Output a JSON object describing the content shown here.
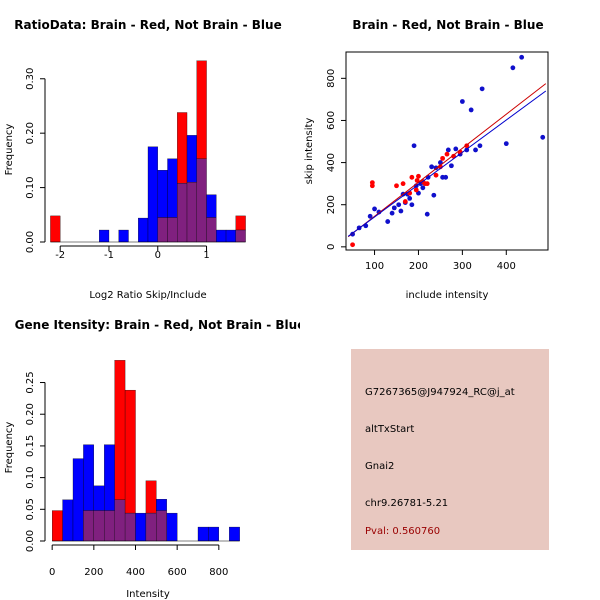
{
  "colors": {
    "red": "#ff0000",
    "blue": "#0000ff",
    "overlap": "#80207f",
    "red_point": "#ff0000",
    "blue_point": "#1010cc",
    "red_line": "#cc0000",
    "blue_line": "#0000cc",
    "info_bg": "#e8c8c0",
    "pval_text": "#990000"
  },
  "chart_data": [
    {
      "id": "ratio",
      "type": "histogram",
      "title": "RatioData: Brain - Red, Not Brain - Blue",
      "xlabel": "Log2 Ratio Skip/Include",
      "ylabel": "Frequency",
      "xlim": [
        -2.25,
        1.85
      ],
      "ylim": [
        0,
        0.34
      ],
      "xticks": [
        -2,
        -1,
        0,
        1
      ],
      "yticks": [
        0,
        0.1,
        0.2,
        0.3
      ],
      "ytick_labels": [
        "0.00",
        "0.10",
        "0.20",
        "0.30"
      ],
      "bin_edges": [
        -2.2,
        -2.0,
        -1.8,
        -1.6,
        -1.4,
        -1.2,
        -1.0,
        -0.8,
        -0.6,
        -0.4,
        -0.2,
        0.0,
        0.2,
        0.4,
        0.6,
        0.8,
        1.0,
        1.2,
        1.4,
        1.6,
        1.8
      ],
      "series": [
        {
          "name": "Brain",
          "color": "red",
          "values": [
            0.048,
            0,
            0,
            0,
            0,
            0,
            0,
            0,
            0,
            0,
            0,
            0.045,
            0.045,
            0.238,
            0.11,
            0.333,
            0.045,
            0,
            0,
            0.048
          ]
        },
        {
          "name": "Not Brain",
          "color": "blue",
          "values": [
            0,
            0,
            0,
            0,
            0,
            0.022,
            0,
            0.022,
            0,
            0.044,
            0.175,
            0.132,
            0.153,
            0.108,
            0.196,
            0.153,
            0.087,
            0.022,
            0.022,
            0.022
          ]
        }
      ]
    },
    {
      "id": "scatter",
      "type": "scatter",
      "title": "Brain - Red, Not Brain - Blue",
      "xlabel": "include intensity",
      "ylabel": "skip intensity",
      "xlim": [
        35,
        495
      ],
      "ylim": [
        -15,
        925
      ],
      "xticks": [
        100,
        200,
        300,
        400
      ],
      "yticks": [
        0,
        200,
        400,
        600,
        800
      ],
      "series": [
        {
          "name": "Brain",
          "color": "red_point",
          "points": [
            [
              50,
              10
            ],
            [
              95,
              290
            ],
            [
              95,
              305
            ],
            [
              150,
              290
            ],
            [
              165,
              300
            ],
            [
              170,
              215
            ],
            [
              180,
              255
            ],
            [
              185,
              330
            ],
            [
              195,
              270
            ],
            [
              197,
              315
            ],
            [
              200,
              335
            ],
            [
              210,
              310
            ],
            [
              215,
              300
            ],
            [
              220,
              300
            ],
            [
              240,
              340
            ],
            [
              250,
              380
            ],
            [
              255,
              420
            ],
            [
              265,
              440
            ],
            [
              280,
              430
            ],
            [
              295,
              450
            ],
            [
              310,
              480
            ]
          ],
          "fit": [
            [
              40,
              48
            ],
            [
              490,
              775
            ]
          ]
        },
        {
          "name": "Not Brain",
          "color": "blue_point",
          "points": [
            [
              50,
              60
            ],
            [
              65,
              90
            ],
            [
              80,
              100
            ],
            [
              90,
              145
            ],
            [
              100,
              180
            ],
            [
              110,
              165
            ],
            [
              130,
              120
            ],
            [
              140,
              160
            ],
            [
              145,
              185
            ],
            [
              155,
              200
            ],
            [
              160,
              170
            ],
            [
              165,
              250
            ],
            [
              170,
              210
            ],
            [
              175,
              250
            ],
            [
              180,
              230
            ],
            [
              185,
              200
            ],
            [
              190,
              480
            ],
            [
              195,
              290
            ],
            [
              200,
              255
            ],
            [
              205,
              300
            ],
            [
              210,
              280
            ],
            [
              220,
              155
            ],
            [
              222,
              330
            ],
            [
              230,
              380
            ],
            [
              235,
              245
            ],
            [
              240,
              375
            ],
            [
              250,
              400
            ],
            [
              255,
              330
            ],
            [
              262,
              330
            ],
            [
              268,
              460
            ],
            [
              275,
              385
            ],
            [
              285,
              465
            ],
            [
              295,
              440
            ],
            [
              300,
              690
            ],
            [
              310,
              460
            ],
            [
              320,
              650
            ],
            [
              330,
              460
            ],
            [
              340,
              480
            ],
            [
              345,
              750
            ],
            [
              400,
              490
            ],
            [
              415,
              850
            ],
            [
              435,
              900
            ],
            [
              483,
              520
            ]
          ],
          "fit": [
            [
              40,
              50
            ],
            [
              490,
              740
            ]
          ]
        }
      ]
    },
    {
      "id": "intensity",
      "type": "histogram",
      "title": "Gene Itensity: Brain - Red, Not Brain - Blue",
      "xlabel": "Intensity",
      "ylabel": "Frequency",
      "xlim": [
        -20,
        940
      ],
      "ylim": [
        0,
        0.295
      ],
      "xticks": [
        0,
        200,
        400,
        600,
        800
      ],
      "yticks": [
        0,
        0.05,
        0.1,
        0.15,
        0.2,
        0.25
      ],
      "ytick_labels": [
        "0.00",
        "0.05",
        "0.10",
        "0.15",
        "0.20",
        "0.25"
      ],
      "bin_edges": [
        0,
        50,
        100,
        150,
        200,
        250,
        300,
        350,
        400,
        450,
        500,
        550,
        600,
        650,
        700,
        750,
        800,
        850,
        900
      ],
      "series": [
        {
          "name": "Brain",
          "color": "red",
          "values": [
            0.048,
            0,
            0,
            0.048,
            0.048,
            0.048,
            0.285,
            0.238,
            0,
            0.095,
            0.048,
            0,
            0,
            0,
            0,
            0,
            0,
            0
          ],
          "overlap_only": [
            false,
            false,
            false,
            false,
            false,
            false,
            true,
            true,
            false,
            false,
            false,
            false,
            false,
            false,
            false,
            false,
            false,
            false
          ]
        },
        {
          "name": "Not Brain",
          "color": "blue",
          "values": [
            0,
            0.065,
            0.13,
            0.152,
            0.087,
            0.152,
            0.065,
            0.044,
            0.044,
            0.044,
            0.066,
            0.044,
            0,
            0,
            0.022,
            0.022,
            0,
            0.022
          ]
        }
      ]
    }
  ],
  "info": {
    "probe_id": "G7267365@J947924_RC@j_at",
    "event_type": "altTxStart",
    "gene": "Gnai2",
    "location": "chr9.26781-5.21",
    "pval": "Pval: 0.560760"
  }
}
